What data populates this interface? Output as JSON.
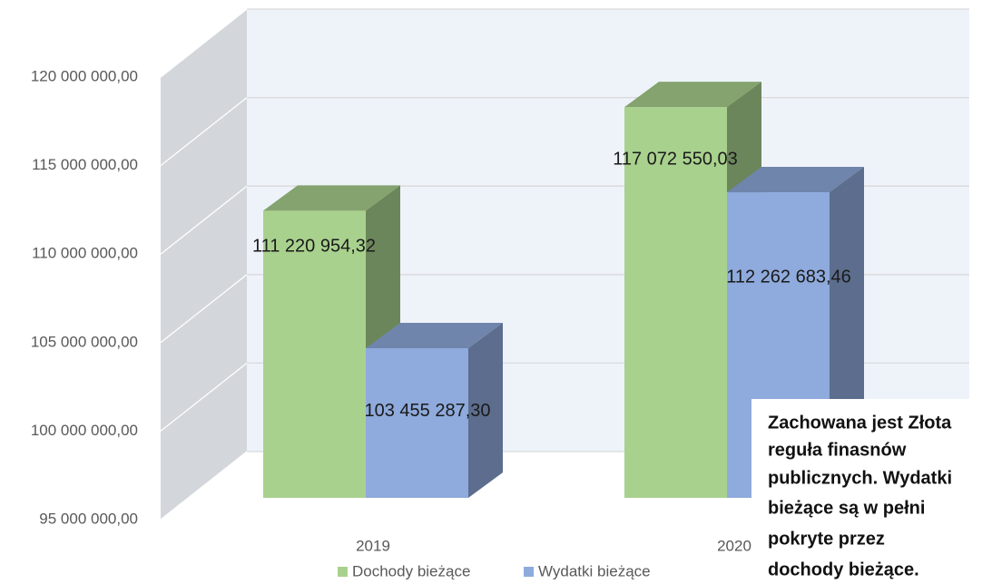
{
  "chart_data": {
    "type": "bar3d",
    "categories": [
      "2019",
      "2020"
    ],
    "series": [
      {
        "name": "Dochody bieżące",
        "color": "#a9d18e",
        "values": [
          111220954.32,
          117072550.03
        ],
        "value_labels": [
          "111 220 954,32",
          "117 072 550,03"
        ]
      },
      {
        "name": "Wydatki bieżące",
        "color": "#8faadc",
        "values": [
          103455287.3,
          112262683.46
        ],
        "value_labels": [
          "103 455 287,30",
          "112 262 683,46"
        ]
      }
    ],
    "ylim": [
      95000000,
      120000000
    ],
    "yticks": [
      {
        "value": 95000000,
        "label": "95 000 000,00"
      },
      {
        "value": 100000000,
        "label": "100 000 000,00"
      },
      {
        "value": 105000000,
        "label": "105 000 000,00"
      },
      {
        "value": 110000000,
        "label": "110 000 000,00"
      },
      {
        "value": 115000000,
        "label": "115 000 000,00"
      },
      {
        "value": 120000000,
        "label": "120 000 000,00"
      }
    ],
    "grid": true,
    "legend": "bottom",
    "annotation": [
      "Zachowana  jest Złota",
      "reguła finasnów",
      "publicznych. Wydatki",
      "bieżące są w pełni",
      "pokryte przez",
      "dochody bieżące."
    ]
  }
}
